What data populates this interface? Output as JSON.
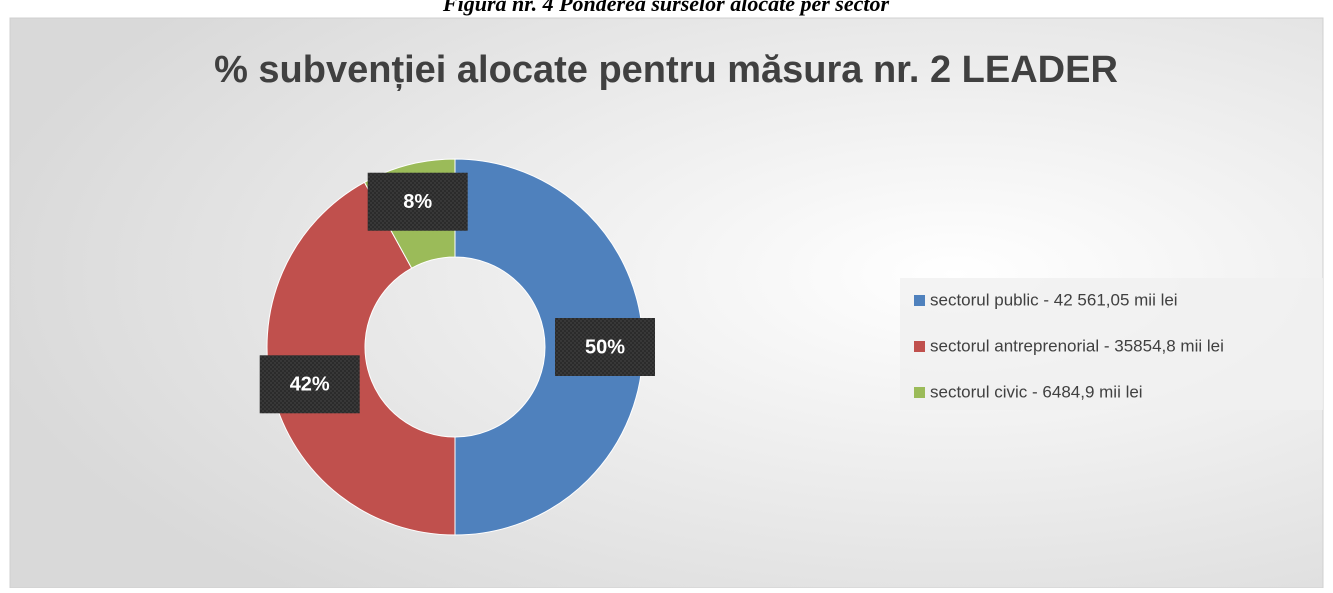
{
  "caption": "Figura nr. 4 Ponderea surselor alocate per sector",
  "chart_data": {
    "type": "donut",
    "title": "% subvenției alocate pentru măsura nr. 2 LEADER",
    "categories": [
      "sectorul public - 42 561,05 mii lei",
      "sectorul antreprenorial - 35854,8 mii lei",
      "sectorul civic - 6484,9 mii lei"
    ],
    "values": [
      50,
      42,
      8
    ],
    "value_labels": [
      "50%",
      "42%",
      "8%"
    ],
    "colors": [
      "#4f81bd",
      "#c0504d",
      "#9bbb59"
    ],
    "legend": "right"
  }
}
